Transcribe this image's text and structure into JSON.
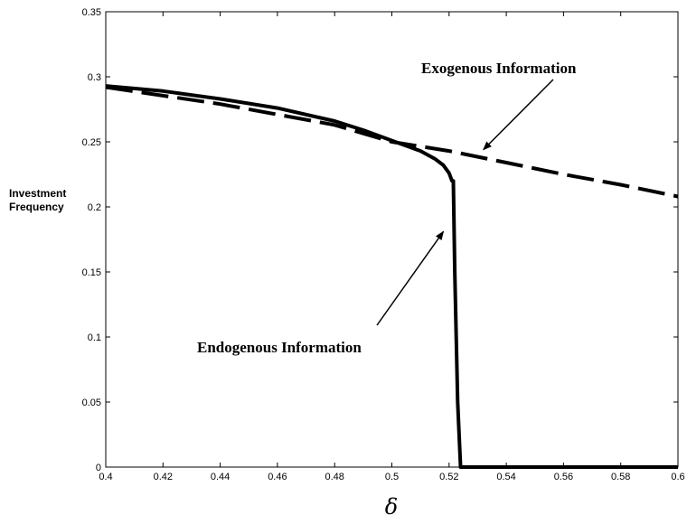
{
  "chart_data": {
    "type": "line",
    "title": "",
    "xlabel": "δ",
    "ylabel": [
      "Investment",
      "Frequency"
    ],
    "xlim": [
      0.4,
      0.6
    ],
    "ylim": [
      0,
      0.35
    ],
    "grid": false,
    "legend": "none",
    "x_ticks": [
      "0.4",
      "0.42",
      "0.44",
      "0.46",
      "0.48",
      "0.5",
      "0.52",
      "0.54",
      "0.56",
      "0.58",
      "0.6"
    ],
    "y_ticks": [
      "0",
      "0.05",
      "0.1",
      "0.15",
      "0.2",
      "0.25",
      "0.3",
      "0.35"
    ],
    "series": [
      {
        "style": "solid",
        "color": "#000000",
        "points": [
          [
            0.4,
            0.293
          ],
          [
            0.42,
            0.289
          ],
          [
            0.44,
            0.283
          ],
          [
            0.46,
            0.276
          ],
          [
            0.48,
            0.266
          ],
          [
            0.49,
            0.259
          ],
          [
            0.5,
            0.251
          ],
          [
            0.51,
            0.243
          ],
          [
            0.515,
            0.237
          ],
          [
            0.518,
            0.232
          ],
          [
            0.52,
            0.226
          ],
          [
            0.521,
            0.22
          ],
          [
            0.5215,
            0.22
          ],
          [
            0.522,
            0.15
          ],
          [
            0.523,
            0.05
          ],
          [
            0.524,
            0.0
          ],
          [
            0.6,
            0.0
          ]
        ]
      },
      {
        "style": "dashed",
        "color": "#000000",
        "points": [
          [
            0.4,
            0.292
          ],
          [
            0.44,
            0.279
          ],
          [
            0.48,
            0.263
          ],
          [
            0.5,
            0.25
          ],
          [
            0.52,
            0.243
          ],
          [
            0.54,
            0.234
          ],
          [
            0.56,
            0.225
          ],
          [
            0.58,
            0.217
          ],
          [
            0.6,
            0.208
          ]
        ]
      }
    ],
    "annotations": [
      {
        "text": "Exogenous Information",
        "arrow_to": [
          0.532,
          0.244
        ]
      },
      {
        "text": "Endogenous Information",
        "arrow_to": [
          0.518,
          0.181
        ]
      }
    ]
  }
}
